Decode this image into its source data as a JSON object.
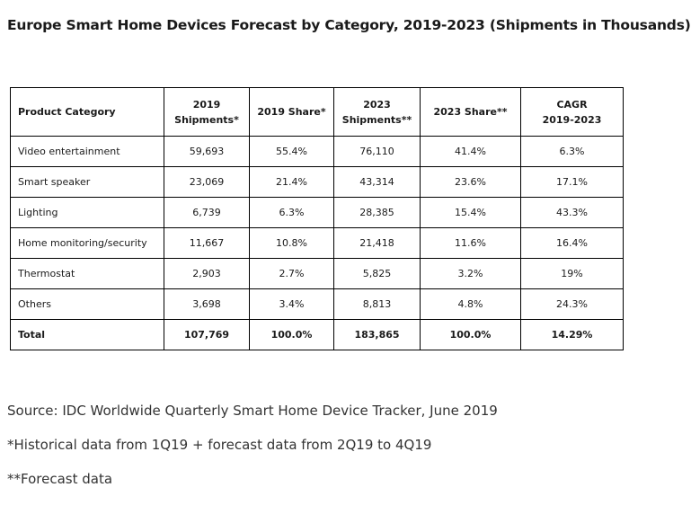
{
  "title": "Europe Smart Home Devices Forecast by Category, 2019-2023 (Shipments in Thousands)",
  "table": {
    "headers": [
      [
        "Product Category"
      ],
      [
        "2019",
        "Shipments*"
      ],
      [
        "2019 Share*"
      ],
      [
        "2023",
        "Shipments**"
      ],
      [
        "2023 Share**"
      ],
      [
        "CAGR",
        "2019-2023"
      ]
    ],
    "rows": [
      [
        "Video entertainment",
        "59,693",
        "55.4%",
        "76,110",
        "41.4%",
        "6.3%"
      ],
      [
        "Smart speaker",
        "23,069",
        "21.4%",
        "43,314",
        "23.6%",
        "17.1%"
      ],
      [
        "Lighting",
        "6,739",
        "6.3%",
        "28,385",
        "15.4%",
        "43.3%"
      ],
      [
        "Home monitoring/security",
        "11,667",
        "10.8%",
        "21,418",
        "11.6%",
        "16.4%"
      ],
      [
        "Thermostat",
        "2,903",
        "2.7%",
        "5,825",
        "3.2%",
        "19%"
      ],
      [
        "Others",
        "3,698",
        "3.4%",
        "8,813",
        "4.8%",
        "24.3%"
      ]
    ],
    "total": [
      "Total",
      "107,769",
      "100.0%",
      "183,865",
      "100.0%",
      "14.29%"
    ]
  },
  "notes": {
    "source": "Source: IDC Worldwide Quarterly Smart Home Device Tracker, June 2019",
    "historical": "*Historical data from 1Q19 + forecast data from 2Q19 to 4Q19",
    "forecast": "**Forecast data"
  }
}
